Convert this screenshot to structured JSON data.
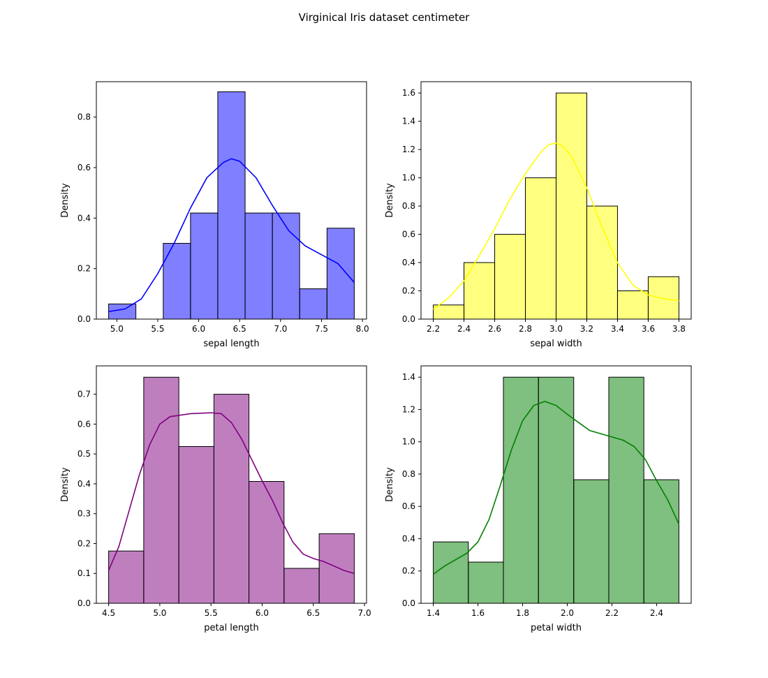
{
  "figure": {
    "title": "Virginical Iris dataset centimeter"
  },
  "chart_data": [
    {
      "type": "bar",
      "subtype": "histogram-with-kde",
      "title": "",
      "xlabel": "sepal length",
      "ylabel": "Density",
      "color": "#0000ff",
      "xlim": [
        4.75,
        8.05
      ],
      "ylim": [
        0,
        0.94
      ],
      "xticks": [
        5.0,
        5.5,
        6.0,
        6.5,
        7.0,
        7.5,
        8.0
      ],
      "xtick_labels": [
        "5.0",
        "5.5",
        "6.0",
        "6.5",
        "7.0",
        "7.5",
        "8.0"
      ],
      "yticks": [
        0.0,
        0.2,
        0.4,
        0.6,
        0.8
      ],
      "ytick_labels": [
        "0.0",
        "0.2",
        "0.4",
        "0.6",
        "0.8"
      ],
      "bins": [
        {
          "x0": 4.9,
          "x1": 5.233,
          "value": 0.06
        },
        {
          "x0": 5.233,
          "x1": 5.567,
          "value": 0.0
        },
        {
          "x0": 5.567,
          "x1": 5.9,
          "value": 0.3
        },
        {
          "x0": 5.9,
          "x1": 6.233,
          "value": 0.42
        },
        {
          "x0": 6.233,
          "x1": 6.567,
          "value": 0.9
        },
        {
          "x0": 6.567,
          "x1": 6.9,
          "value": 0.42
        },
        {
          "x0": 6.9,
          "x1": 7.233,
          "value": 0.42
        },
        {
          "x0": 7.233,
          "x1": 7.567,
          "value": 0.12
        },
        {
          "x0": 7.567,
          "x1": 7.9,
          "value": 0.36
        }
      ],
      "kde": [
        [
          4.9,
          0.03
        ],
        [
          5.1,
          0.04
        ],
        [
          5.3,
          0.08
        ],
        [
          5.5,
          0.18
        ],
        [
          5.7,
          0.3
        ],
        [
          5.9,
          0.44
        ],
        [
          6.1,
          0.56
        ],
        [
          6.3,
          0.62
        ],
        [
          6.4,
          0.635
        ],
        [
          6.5,
          0.625
        ],
        [
          6.7,
          0.56
        ],
        [
          6.9,
          0.45
        ],
        [
          7.1,
          0.35
        ],
        [
          7.3,
          0.29
        ],
        [
          7.5,
          0.255
        ],
        [
          7.7,
          0.22
        ],
        [
          7.9,
          0.145
        ]
      ]
    },
    {
      "type": "bar",
      "subtype": "histogram-with-kde",
      "title": "",
      "xlabel": "sepal width",
      "ylabel": "Density",
      "color": "#ffff00",
      "xlim": [
        2.12,
        3.88
      ],
      "ylim": [
        0,
        1.68
      ],
      "xticks": [
        2.2,
        2.4,
        2.6,
        2.8,
        3.0,
        3.2,
        3.4,
        3.6,
        3.8
      ],
      "xtick_labels": [
        "2.2",
        "2.4",
        "2.6",
        "2.8",
        "3.0",
        "3.2",
        "3.4",
        "3.6",
        "3.8"
      ],
      "yticks": [
        0.0,
        0.2,
        0.4,
        0.6,
        0.8,
        1.0,
        1.2,
        1.4,
        1.6
      ],
      "ytick_labels": [
        "0.0",
        "0.2",
        "0.4",
        "0.6",
        "0.8",
        "1.0",
        "1.2",
        "1.4",
        "1.6"
      ],
      "bins": [
        {
          "x0": 2.2,
          "x1": 2.4,
          "value": 0.1
        },
        {
          "x0": 2.4,
          "x1": 2.6,
          "value": 0.4
        },
        {
          "x0": 2.6,
          "x1": 2.8,
          "value": 0.6
        },
        {
          "x0": 2.8,
          "x1": 3.0,
          "value": 1.0
        },
        {
          "x0": 3.0,
          "x1": 3.2,
          "value": 1.6
        },
        {
          "x0": 3.2,
          "x1": 3.4,
          "value": 0.8
        },
        {
          "x0": 3.4,
          "x1": 3.6,
          "value": 0.2
        },
        {
          "x0": 3.6,
          "x1": 3.8,
          "value": 0.3
        }
      ],
      "kde": [
        [
          2.2,
          0.07
        ],
        [
          2.3,
          0.15
        ],
        [
          2.4,
          0.27
        ],
        [
          2.5,
          0.45
        ],
        [
          2.6,
          0.64
        ],
        [
          2.7,
          0.85
        ],
        [
          2.8,
          1.03
        ],
        [
          2.9,
          1.18
        ],
        [
          2.95,
          1.235
        ],
        [
          3.0,
          1.245
        ],
        [
          3.05,
          1.22
        ],
        [
          3.1,
          1.15
        ],
        [
          3.2,
          0.93
        ],
        [
          3.3,
          0.65
        ],
        [
          3.4,
          0.4
        ],
        [
          3.5,
          0.24
        ],
        [
          3.6,
          0.17
        ],
        [
          3.7,
          0.145
        ],
        [
          3.8,
          0.13
        ]
      ]
    },
    {
      "type": "bar",
      "subtype": "histogram-with-kde",
      "title": "",
      "xlabel": "petal length",
      "ylabel": "Density",
      "color": "#800080",
      "xlim": [
        4.38,
        7.02
      ],
      "ylim": [
        0,
        0.795
      ],
      "xticks": [
        4.5,
        5.0,
        5.5,
        6.0,
        6.5,
        7.0
      ],
      "xtick_labels": [
        "4.5",
        "5.0",
        "5.5",
        "6.0",
        "6.5",
        "7.0"
      ],
      "yticks": [
        0.0,
        0.1,
        0.2,
        0.3,
        0.4,
        0.5,
        0.6,
        0.7
      ],
      "ytick_labels": [
        "0.0",
        "0.1",
        "0.2",
        "0.3",
        "0.4",
        "0.5",
        "0.6",
        "0.7"
      ],
      "bins": [
        {
          "x0": 4.5,
          "x1": 4.843,
          "value": 0.175
        },
        {
          "x0": 4.843,
          "x1": 5.186,
          "value": 0.757
        },
        {
          "x0": 5.186,
          "x1": 5.529,
          "value": 0.525
        },
        {
          "x0": 5.529,
          "x1": 5.871,
          "value": 0.7
        },
        {
          "x0": 5.871,
          "x1": 6.214,
          "value": 0.408
        },
        {
          "x0": 6.214,
          "x1": 6.557,
          "value": 0.117
        },
        {
          "x0": 6.557,
          "x1": 6.9,
          "value": 0.233
        }
      ],
      "kde": [
        [
          4.5,
          0.11
        ],
        [
          4.6,
          0.19
        ],
        [
          4.7,
          0.31
        ],
        [
          4.8,
          0.43
        ],
        [
          4.9,
          0.53
        ],
        [
          5.0,
          0.6
        ],
        [
          5.1,
          0.625
        ],
        [
          5.3,
          0.635
        ],
        [
          5.5,
          0.638
        ],
        [
          5.6,
          0.635
        ],
        [
          5.7,
          0.605
        ],
        [
          5.8,
          0.55
        ],
        [
          5.9,
          0.48
        ],
        [
          6.0,
          0.41
        ],
        [
          6.1,
          0.345
        ],
        [
          6.2,
          0.27
        ],
        [
          6.3,
          0.205
        ],
        [
          6.4,
          0.165
        ],
        [
          6.5,
          0.15
        ],
        [
          6.6,
          0.14
        ],
        [
          6.7,
          0.125
        ],
        [
          6.8,
          0.11
        ],
        [
          6.9,
          0.1
        ]
      ]
    },
    {
      "type": "bar",
      "subtype": "histogram-with-kde",
      "title": "",
      "xlabel": "petal width",
      "ylabel": "Density",
      "color": "#008000",
      "xlim": [
        1.345,
        2.555
      ],
      "ylim": [
        0,
        1.47
      ],
      "xticks": [
        1.4,
        1.6,
        1.8,
        2.0,
        2.2,
        2.4
      ],
      "xtick_labels": [
        "1.4",
        "1.6",
        "1.8",
        "2.0",
        "2.2",
        "2.4"
      ],
      "yticks": [
        0.0,
        0.2,
        0.4,
        0.6,
        0.8,
        1.0,
        1.2,
        1.4
      ],
      "ytick_labels": [
        "0.0",
        "0.2",
        "0.4",
        "0.6",
        "0.8",
        "1.0",
        "1.2",
        "1.4"
      ],
      "bins": [
        {
          "x0": 1.4,
          "x1": 1.557,
          "value": 0.38
        },
        {
          "x0": 1.557,
          "x1": 1.714,
          "value": 0.255
        },
        {
          "x0": 1.714,
          "x1": 1.871,
          "value": 1.4
        },
        {
          "x0": 1.871,
          "x1": 2.029,
          "value": 1.4
        },
        {
          "x0": 2.029,
          "x1": 2.186,
          "value": 0.765
        },
        {
          "x0": 2.186,
          "x1": 2.343,
          "value": 1.4
        },
        {
          "x0": 2.343,
          "x1": 2.5,
          "value": 0.765
        }
      ],
      "kde": [
        [
          1.4,
          0.18
        ],
        [
          1.45,
          0.23
        ],
        [
          1.5,
          0.27
        ],
        [
          1.55,
          0.31
        ],
        [
          1.6,
          0.38
        ],
        [
          1.65,
          0.52
        ],
        [
          1.7,
          0.73
        ],
        [
          1.75,
          0.95
        ],
        [
          1.8,
          1.13
        ],
        [
          1.85,
          1.225
        ],
        [
          1.9,
          1.25
        ],
        [
          1.95,
          1.225
        ],
        [
          2.0,
          1.17
        ],
        [
          2.05,
          1.12
        ],
        [
          2.1,
          1.07
        ],
        [
          2.2,
          1.03
        ],
        [
          2.25,
          1.01
        ],
        [
          2.3,
          0.97
        ],
        [
          2.35,
          0.89
        ],
        [
          2.4,
          0.76
        ],
        [
          2.45,
          0.64
        ],
        [
          2.5,
          0.49
        ]
      ]
    }
  ]
}
